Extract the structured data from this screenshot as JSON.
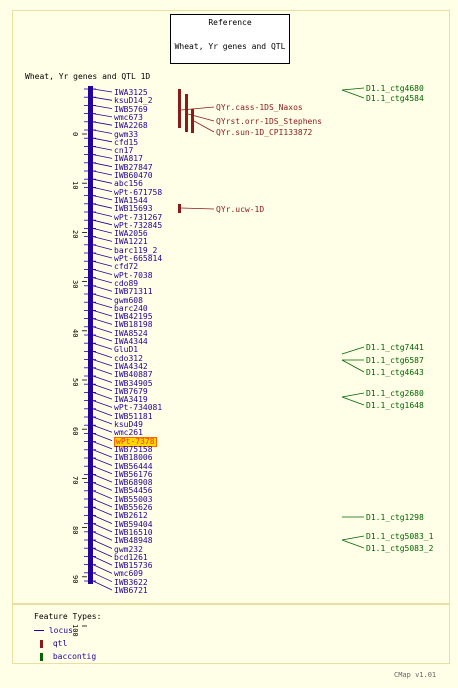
{
  "reference": {
    "title": "Reference",
    "subtitle": "Wheat, Yr genes and QTL"
  },
  "map_title": "Wheat, Yr genes and QTL 1D",
  "markers": [
    "IWA3125",
    "ksuD14_2",
    "IWB5769",
    "wmc673",
    "IWA2268",
    "gwm33",
    "cfd15",
    "cn17",
    "IWA817",
    "IWB27847",
    "IWB60470",
    "abc156",
    "wPt-671758",
    "IWA1544",
    "IWB15693",
    "wPt-731267",
    "wPt-732845",
    "IWA2056",
    "IWA1221",
    "barc119_2",
    "wPt-665814",
    "cfd72",
    "wPt-7038",
    "cdo89",
    "IWB71311",
    "gwm608",
    "barc240",
    "IWB42195",
    "IWB18198",
    "IWA8524",
    "IWA4344",
    "GluD1",
    "cdo312",
    "IWA4342",
    "IWB40887",
    "IWB34905",
    "IWB7679",
    "IWA3419",
    "wPt-734081",
    "IWB51181",
    "ksuD49",
    "wmc261",
    "wPt-7378",
    "IWB75158",
    "IWB18006",
    "IWB56444",
    "IWB56176",
    "IWB68908",
    "IWB54456",
    "IWB55003",
    "IWB55626",
    "IWB2612",
    "IWB59404",
    "IWB16510",
    "IWB48948",
    "gwm232",
    "bcd1261",
    "IWB15736",
    "wmc609",
    "IWB3622",
    "IWB6721"
  ],
  "highlighted_marker": "wPt-7378",
  "scale_ticks": [
    "0",
    "10",
    "20",
    "30",
    "40",
    "50",
    "60",
    "70",
    "80",
    "90",
    "100"
  ],
  "qtls": [
    {
      "label": "QYr.cass-1DS_Naxos"
    },
    {
      "label": "QYrst.orr-1DS_Stephens"
    },
    {
      "label": "QYr.sun-1D_CPI133872"
    },
    {
      "label": "QYr.ucw-1D"
    }
  ],
  "contigs": [
    "D1.1_ctg4680",
    "D1.1_ctg4584",
    "D1.1_ctg7441",
    "D1.1_ctg6587",
    "D1.1_ctg4643",
    "D1.1_ctg2680",
    "D1.1_ctg1648",
    "D1.1_ctg1298",
    "D1.1_ctg5083_1",
    "D1.1_ctg5083_2"
  ],
  "legend": {
    "title": "Feature Types:",
    "items": [
      {
        "label": "locus",
        "color": "#24009a"
      },
      {
        "label": "qtl",
        "color": "#8b1a1a"
      },
      {
        "label": "baccontig",
        "color": "#006400"
      }
    ]
  },
  "footer": "CMap v1.01",
  "colors": {
    "background": "#ffffe8",
    "chromosome": "#24009a",
    "qtl": "#8b1a1a",
    "contig": "#006400",
    "highlight": "#ffd700"
  }
}
